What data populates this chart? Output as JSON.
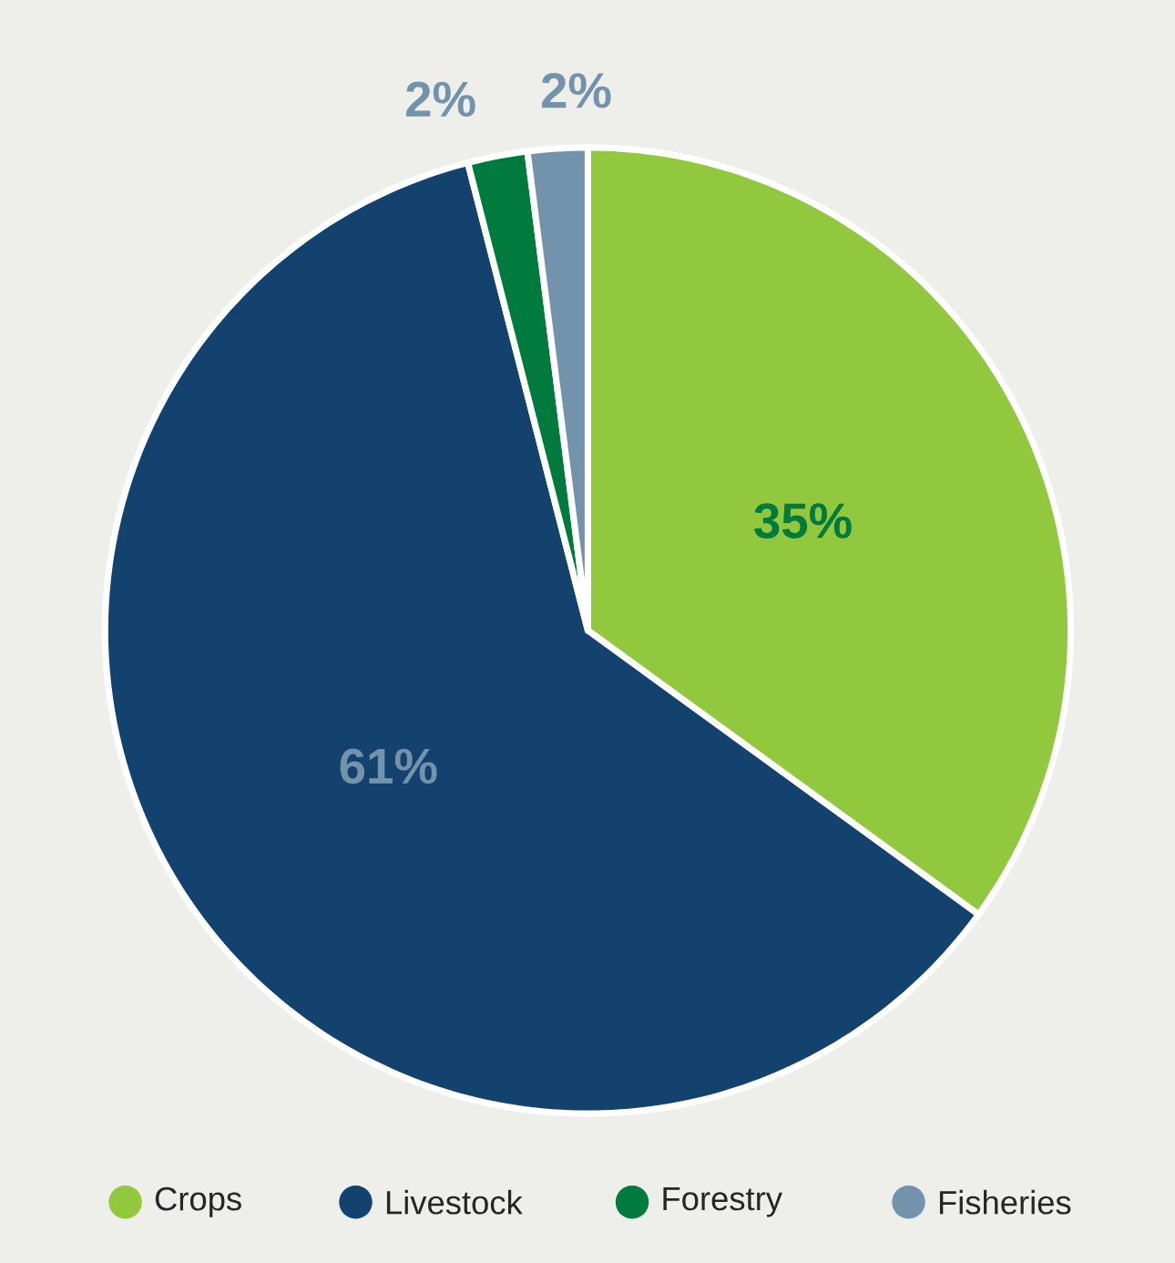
{
  "chart_data": {
    "type": "pie",
    "categories": [
      "Crops",
      "Livestock",
      "Forestry",
      "Fisheries"
    ],
    "values": [
      35,
      61,
      2,
      2
    ],
    "colors": [
      "#92c83e",
      "#13426e",
      "#007a3d",
      "#7393ad"
    ],
    "value_labels": [
      "35%",
      "61%",
      "2%",
      "2%"
    ],
    "legend": "bottom"
  }
}
